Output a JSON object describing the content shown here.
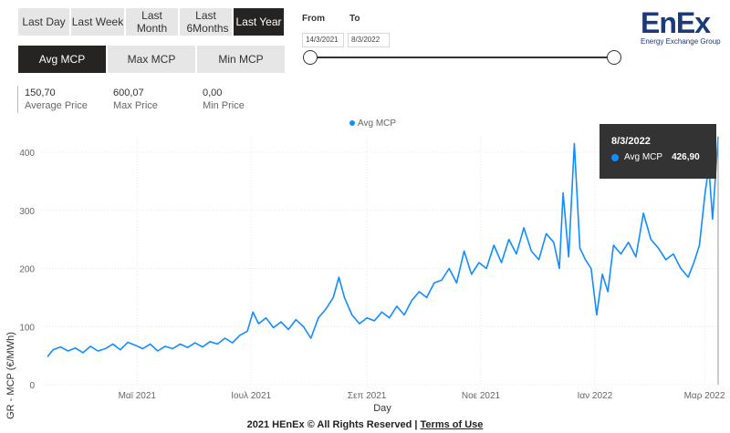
{
  "range_buttons": [
    {
      "label": "Last Day"
    },
    {
      "label": "Last Week"
    },
    {
      "label": "Last Month"
    },
    {
      "label": "Last 6Months"
    },
    {
      "label": "Last Year"
    }
  ],
  "active_range": "Last Year",
  "metric_buttons": [
    {
      "label": "Avg MCP"
    },
    {
      "label": "Max MCP"
    },
    {
      "label": "Min MCP"
    }
  ],
  "active_metric": "Avg MCP",
  "stats": [
    {
      "value": "150,70",
      "label": "Average Price"
    },
    {
      "value": "600,07",
      "label": "Max Price"
    },
    {
      "value": "0,00",
      "label": "Min Price"
    }
  ],
  "date_range": {
    "from_label": "From",
    "to_label": "To",
    "from_value": "14/3/2021",
    "to_value": "8/3/2022"
  },
  "logo": {
    "main": "EnEx",
    "sub": "Energy Exchange Group",
    "color": "#1a3a7a"
  },
  "tooltip": {
    "date": "8/3/2022",
    "series": "Avg MCP",
    "value": "426,90"
  },
  "footer": {
    "text": "2021 HEnEx © All Rights Reserved | ",
    "link": "Terms of Use"
  },
  "chart_data": {
    "type": "line",
    "legend": "Avg MCP",
    "legend_position": "top-center",
    "xlabel": "Day",
    "ylabel": "GR - MCP (€/MWh)",
    "ylim": [
      0,
      430
    ],
    "y_ticks": [
      0,
      100,
      200,
      300,
      400
    ],
    "x_ticks": [
      "Μαϊ 2021",
      "Ιουλ 2021",
      "Σεπ 2021",
      "Νοε 2021",
      "Ιαν 2022",
      "Μαρ 2022"
    ],
    "grid": true,
    "color": "#118dff",
    "series": [
      {
        "name": "Avg MCP",
        "points": [
          [
            "2021-03-14",
            48
          ],
          [
            "2021-03-17",
            60
          ],
          [
            "2021-03-21",
            65
          ],
          [
            "2021-03-25",
            58
          ],
          [
            "2021-03-29",
            63
          ],
          [
            "2021-04-02",
            55
          ],
          [
            "2021-04-06",
            66
          ],
          [
            "2021-04-10",
            58
          ],
          [
            "2021-04-14",
            62
          ],
          [
            "2021-04-18",
            70
          ],
          [
            "2021-04-22",
            60
          ],
          [
            "2021-04-26",
            73
          ],
          [
            "2021-04-30",
            68
          ],
          [
            "2021-05-04",
            62
          ],
          [
            "2021-05-08",
            70
          ],
          [
            "2021-05-12",
            58
          ],
          [
            "2021-05-16",
            66
          ],
          [
            "2021-05-20",
            62
          ],
          [
            "2021-05-24",
            70
          ],
          [
            "2021-05-28",
            64
          ],
          [
            "2021-06-01",
            72
          ],
          [
            "2021-06-05",
            65
          ],
          [
            "2021-06-09",
            74
          ],
          [
            "2021-06-13",
            70
          ],
          [
            "2021-06-17",
            80
          ],
          [
            "2021-06-21",
            72
          ],
          [
            "2021-06-25",
            85
          ],
          [
            "2021-06-29",
            92
          ],
          [
            "2021-07-02",
            125
          ],
          [
            "2021-07-05",
            105
          ],
          [
            "2021-07-09",
            115
          ],
          [
            "2021-07-13",
            98
          ],
          [
            "2021-07-17",
            108
          ],
          [
            "2021-07-21",
            95
          ],
          [
            "2021-07-25",
            112
          ],
          [
            "2021-07-29",
            100
          ],
          [
            "2021-08-02",
            80
          ],
          [
            "2021-08-06",
            115
          ],
          [
            "2021-08-10",
            130
          ],
          [
            "2021-08-14",
            150
          ],
          [
            "2021-08-17",
            185
          ],
          [
            "2021-08-20",
            150
          ],
          [
            "2021-08-24",
            120
          ],
          [
            "2021-08-28",
            105
          ],
          [
            "2021-09-01",
            115
          ],
          [
            "2021-09-05",
            110
          ],
          [
            "2021-09-09",
            125
          ],
          [
            "2021-09-13",
            115
          ],
          [
            "2021-09-17",
            135
          ],
          [
            "2021-09-21",
            120
          ],
          [
            "2021-09-25",
            145
          ],
          [
            "2021-09-29",
            160
          ],
          [
            "2021-10-03",
            150
          ],
          [
            "2021-10-07",
            175
          ],
          [
            "2021-10-11",
            180
          ],
          [
            "2021-10-15",
            200
          ],
          [
            "2021-10-19",
            175
          ],
          [
            "2021-10-23",
            230
          ],
          [
            "2021-10-27",
            190
          ],
          [
            "2021-10-31",
            210
          ],
          [
            "2021-11-04",
            200
          ],
          [
            "2021-11-08",
            240
          ],
          [
            "2021-11-12",
            210
          ],
          [
            "2021-11-16",
            250
          ],
          [
            "2021-11-20",
            225
          ],
          [
            "2021-11-24",
            270
          ],
          [
            "2021-11-28",
            230
          ],
          [
            "2021-12-02",
            215
          ],
          [
            "2021-12-06",
            260
          ],
          [
            "2021-12-10",
            245
          ],
          [
            "2021-12-13",
            200
          ],
          [
            "2021-12-15",
            330
          ],
          [
            "2021-12-18",
            220
          ],
          [
            "2021-12-21",
            415
          ],
          [
            "2021-12-24",
            235
          ],
          [
            "2021-12-27",
            215
          ],
          [
            "2021-12-30",
            200
          ],
          [
            "2022-01-02",
            120
          ],
          [
            "2022-01-05",
            190
          ],
          [
            "2022-01-08",
            160
          ],
          [
            "2022-01-11",
            240
          ],
          [
            "2022-01-15",
            225
          ],
          [
            "2022-01-19",
            245
          ],
          [
            "2022-01-23",
            220
          ],
          [
            "2022-01-27",
            295
          ],
          [
            "2022-01-31",
            250
          ],
          [
            "2022-02-04",
            235
          ],
          [
            "2022-02-08",
            215
          ],
          [
            "2022-02-12",
            225
          ],
          [
            "2022-02-16",
            200
          ],
          [
            "2022-02-20",
            185
          ],
          [
            "2022-02-23",
            210
          ],
          [
            "2022-02-26",
            240
          ],
          [
            "2022-03-01",
            330
          ],
          [
            "2022-03-03",
            375
          ],
          [
            "2022-03-05",
            285
          ],
          [
            "2022-03-08",
            427
          ]
        ]
      }
    ]
  }
}
